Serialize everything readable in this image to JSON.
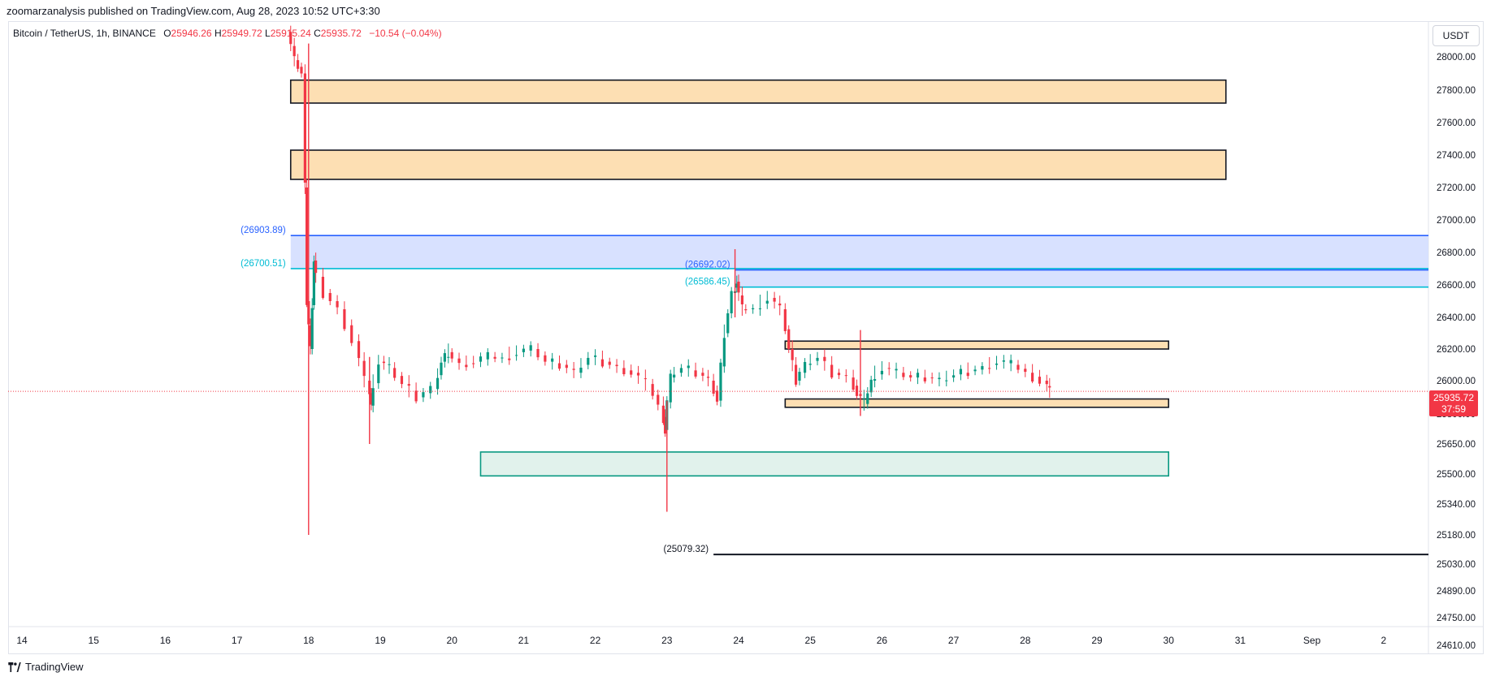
{
  "header": {
    "published_line": "zoomarzanalysis published on TradingView.com, Aug 28, 2023 10:52 UTC+3:30"
  },
  "legend": {
    "symbol": "Bitcoin / TetherUS, 1h, BINANCE",
    "o_label": "O",
    "o_value": "25946.26",
    "h_label": "H",
    "h_value": "25949.72",
    "l_label": "L",
    "l_value": "25915.24",
    "c_label": "C",
    "c_value": "25935.72",
    "change": "−10.54 (−0.04%)"
  },
  "currency_button": "USDT",
  "last_price": {
    "value": "25935.72",
    "countdown": "37:59"
  },
  "footer": {
    "brand": "TradingView"
  },
  "colors": {
    "up": "#089981",
    "down": "#f23645",
    "supply_zone": "#fddfb3",
    "demand_zone": "#e1f2ec",
    "blue_zone": "#d4deff",
    "blue_line": "#2962ff",
    "cyan_line": "#00bcd4"
  },
  "chart_data": {
    "type": "candlestick",
    "timeframe": "1h",
    "x_ticks": [
      "14",
      "15",
      "16",
      "17",
      "18",
      "19",
      "20",
      "21",
      "22",
      "23",
      "24",
      "25",
      "26",
      "27",
      "28",
      "29",
      "30",
      "31",
      "Sep",
      "2"
    ],
    "y_ticks": [
      "28000.00",
      "27800.00",
      "27600.00",
      "27400.00",
      "27200.00",
      "27000.00",
      "26800.00",
      "26600.00",
      "26400.00",
      "26200.00",
      "26000.00",
      "25800.00",
      "25650.00",
      "25500.00",
      "25340.00",
      "25180.00",
      "25030.00",
      "24890.00",
      "24750.00",
      "24610.00"
    ],
    "y_tick_values": [
      28000,
      27800,
      27600,
      27400,
      27200,
      27000,
      26800,
      26600,
      26400,
      26200,
      26000,
      25800,
      25650,
      25500,
      25340,
      25180,
      25030,
      24890,
      24750,
      24610
    ],
    "ylim": [
      24600,
      28170
    ],
    "xlim_days": [
      13.6,
      33.6
    ],
    "price_path": [
      [
        17.75,
        28150
      ],
      [
        17.85,
        27980
      ],
      [
        17.95,
        27900
      ],
      [
        18.0,
        26500
      ],
      [
        18.05,
        26200
      ],
      [
        18.1,
        26750
      ],
      [
        18.3,
        26550
      ],
      [
        18.5,
        26450
      ],
      [
        18.7,
        26250
      ],
      [
        18.85,
        26000
      ],
      [
        18.9,
        25850
      ],
      [
        19.05,
        26120
      ],
      [
        19.2,
        26080
      ],
      [
        19.4,
        25980
      ],
      [
        19.6,
        25900
      ],
      [
        19.8,
        25950
      ],
      [
        19.9,
        26120
      ],
      [
        20.0,
        26180
      ],
      [
        20.2,
        26100
      ],
      [
        20.4,
        26120
      ],
      [
        20.6,
        26150
      ],
      [
        20.8,
        26140
      ],
      [
        21.0,
        26180
      ],
      [
        21.2,
        26200
      ],
      [
        21.4,
        26120
      ],
      [
        21.6,
        26100
      ],
      [
        21.8,
        26050
      ],
      [
        22.0,
        26150
      ],
      [
        22.2,
        26120
      ],
      [
        22.4,
        26080
      ],
      [
        22.6,
        26050
      ],
      [
        22.8,
        25980
      ],
      [
        22.95,
        25850
      ],
      [
        23.0,
        25720
      ],
      [
        23.1,
        26020
      ],
      [
        23.3,
        26080
      ],
      [
        23.5,
        26050
      ],
      [
        23.65,
        26000
      ],
      [
        23.75,
        25880
      ],
      [
        23.85,
        26300
      ],
      [
        23.95,
        26550
      ],
      [
        24.0,
        26620
      ],
      [
        24.1,
        26450
      ],
      [
        24.3,
        26450
      ],
      [
        24.5,
        26520
      ],
      [
        24.65,
        26450
      ],
      [
        24.75,
        26200
      ],
      [
        24.85,
        26000
      ],
      [
        25.0,
        26100
      ],
      [
        25.2,
        26150
      ],
      [
        25.4,
        26050
      ],
      [
        25.6,
        26020
      ],
      [
        25.7,
        25920
      ],
      [
        25.8,
        25860
      ],
      [
        25.9,
        26000
      ],
      [
        26.1,
        26080
      ],
      [
        26.3,
        26050
      ],
      [
        26.5,
        26020
      ],
      [
        26.7,
        26020
      ],
      [
        26.9,
        26000
      ],
      [
        27.1,
        26040
      ],
      [
        27.3,
        26060
      ],
      [
        27.5,
        26080
      ],
      [
        27.7,
        26120
      ],
      [
        27.9,
        26100
      ],
      [
        28.1,
        26050
      ],
      [
        28.3,
        26000
      ],
      [
        28.38,
        25935
      ]
    ],
    "wick_extremes": [
      {
        "x": 18.0,
        "high": 28080,
        "low": 25180
      },
      {
        "x": 18.85,
        "high": 26150,
        "low": 25650
      },
      {
        "x": 23.0,
        "high": 25880,
        "low": 25300
      },
      {
        "x": 23.95,
        "high": 26820,
        "low": 26400
      },
      {
        "x": 25.7,
        "high": 26320,
        "low": 25790
      }
    ],
    "zones": [
      {
        "kind": "supply",
        "from_day": 17.75,
        "to_day": 30.8,
        "low": 27720,
        "high": 27860
      },
      {
        "kind": "supply",
        "from_day": 17.75,
        "to_day": 30.8,
        "low": 27250,
        "high": 27430
      },
      {
        "kind": "supply",
        "from_day": 24.65,
        "to_day": 30.0,
        "low": 26200,
        "high": 26250
      },
      {
        "kind": "supply",
        "from_day": 24.65,
        "to_day": 30.0,
        "low": 25840,
        "high": 25890
      },
      {
        "kind": "demand",
        "from_day": 20.4,
        "to_day": 30.0,
        "low": 25490,
        "high": 25610
      }
    ],
    "levels": [
      {
        "label": "(26903.89)",
        "value": 26903.89,
        "from_day": 17.75,
        "style": "blue",
        "band_low": 26700.51
      },
      {
        "label": "(26700.51)",
        "value": 26700.51,
        "from_day": 17.75,
        "style": "cyan"
      },
      {
        "label": "(26692.02)",
        "value": 26692.02,
        "from_day": 23.95,
        "style": "blue",
        "band_low": 26586.45
      },
      {
        "label": "(26586.45)",
        "value": 26586.45,
        "from_day": 23.95,
        "style": "cyan"
      },
      {
        "label": "(25079.32)",
        "value": 25079.32,
        "from_day": 23.65,
        "style": "black"
      }
    ],
    "last_price_value": 25935.72
  }
}
